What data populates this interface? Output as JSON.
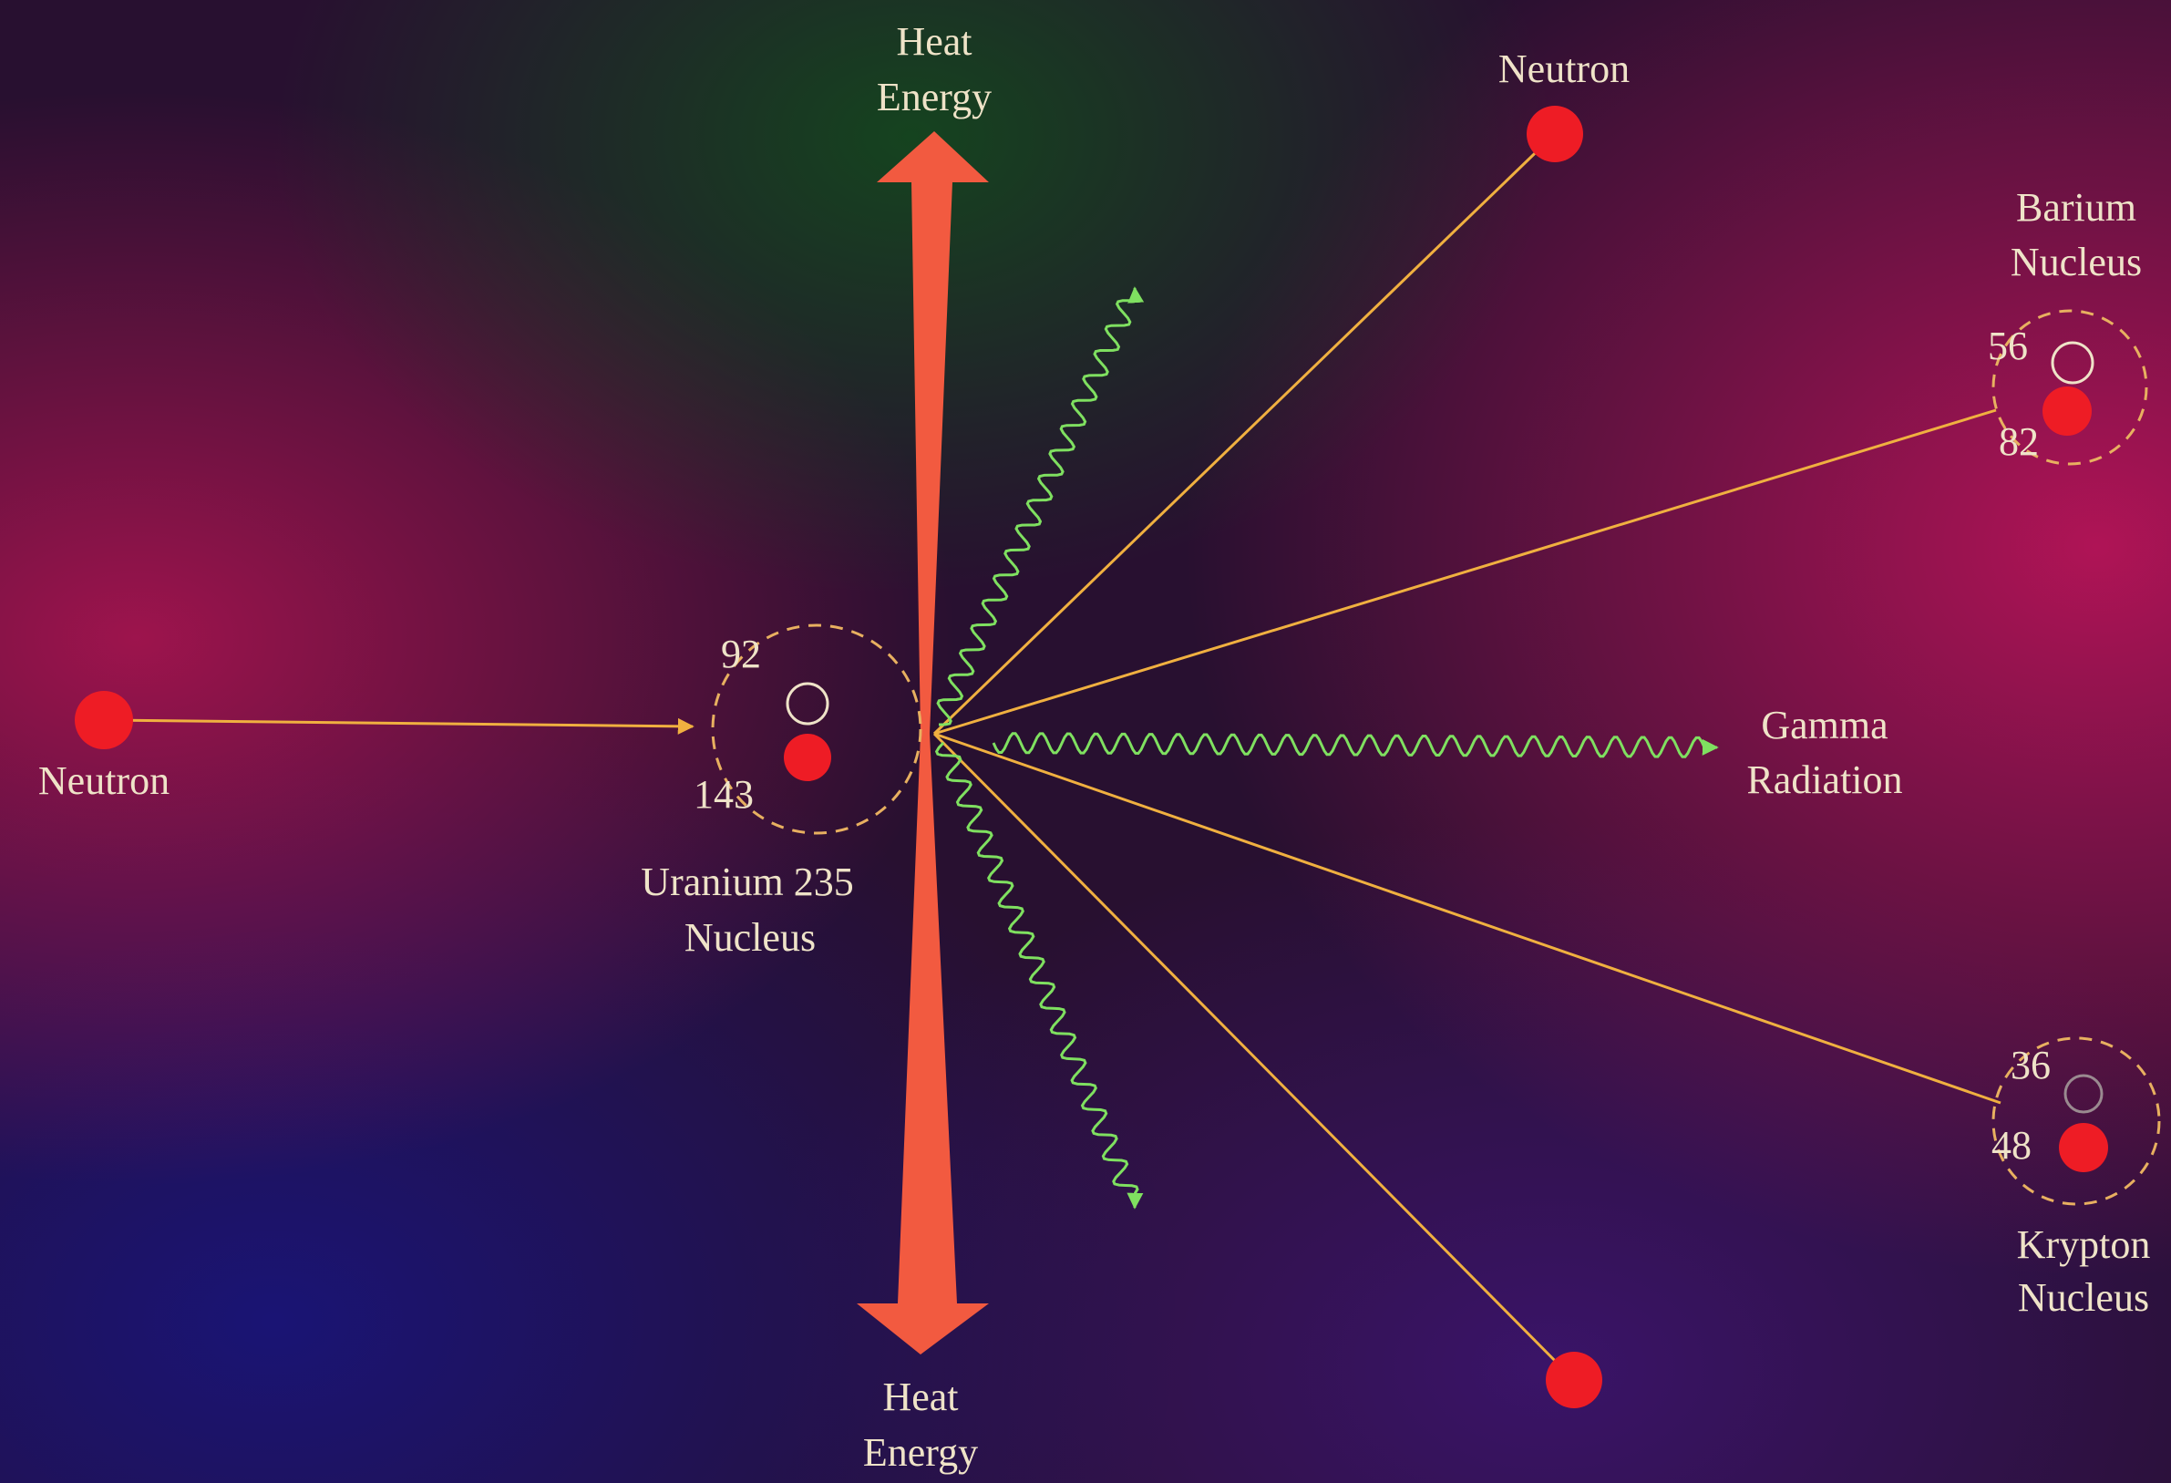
{
  "labels": {
    "heat_top": [
      "Heat",
      "Energy"
    ],
    "heat_bottom": [
      "Heat",
      "Energy"
    ],
    "neutron_left": "Neutron",
    "neutron_top": "Neutron",
    "uranium": [
      "Uranium 235",
      "Nucleus"
    ],
    "barium": [
      "Barium",
      "Nucleus"
    ],
    "krypton": [
      "Krypton",
      "Nucleus"
    ],
    "gamma": [
      "Gamma",
      "Radiation"
    ]
  },
  "numbers": {
    "uranium": [
      "92",
      "143"
    ],
    "barium": [
      "56",
      "82"
    ],
    "krypton": [
      "36",
      "48"
    ]
  }
}
